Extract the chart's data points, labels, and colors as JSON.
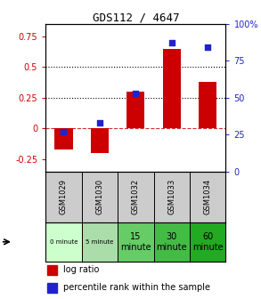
{
  "title": "GDS112 / 4647",
  "samples": [
    "GSM1029",
    "GSM1030",
    "GSM1032",
    "GSM1033",
    "GSM1034"
  ],
  "log_ratios": [
    -0.17,
    -0.2,
    0.3,
    0.65,
    0.38
  ],
  "percentile_ranks": [
    27,
    33,
    53,
    87,
    84
  ],
  "time_labels": [
    "0 minute",
    "5 minute",
    "15\nminute",
    "30\nminute",
    "60\nminute"
  ],
  "time_colors": [
    "#ccffcc",
    "#aaddaa",
    "#66cc66",
    "#44bb44",
    "#22aa22"
  ],
  "bar_color": "#cc0000",
  "dot_color": "#2222cc",
  "ylim_left": [
    -0.35,
    0.85
  ],
  "ylim_right": [
    0,
    100
  ],
  "yticks_left": [
    -0.25,
    0.0,
    0.25,
    0.5,
    0.75
  ],
  "yticks_right": [
    0,
    25,
    50,
    75,
    100
  ],
  "hlines_dotted": [
    0.25,
    0.5
  ],
  "hline_dashed": 0.0,
  "background_color": "#ffffff",
  "gsm_bg": "#cccccc",
  "bar_width": 0.5,
  "title_fontsize": 9,
  "tick_fontsize": 7,
  "gsm_fontsize": 6,
  "time_fontsize_small": 5,
  "time_fontsize_large": 7
}
